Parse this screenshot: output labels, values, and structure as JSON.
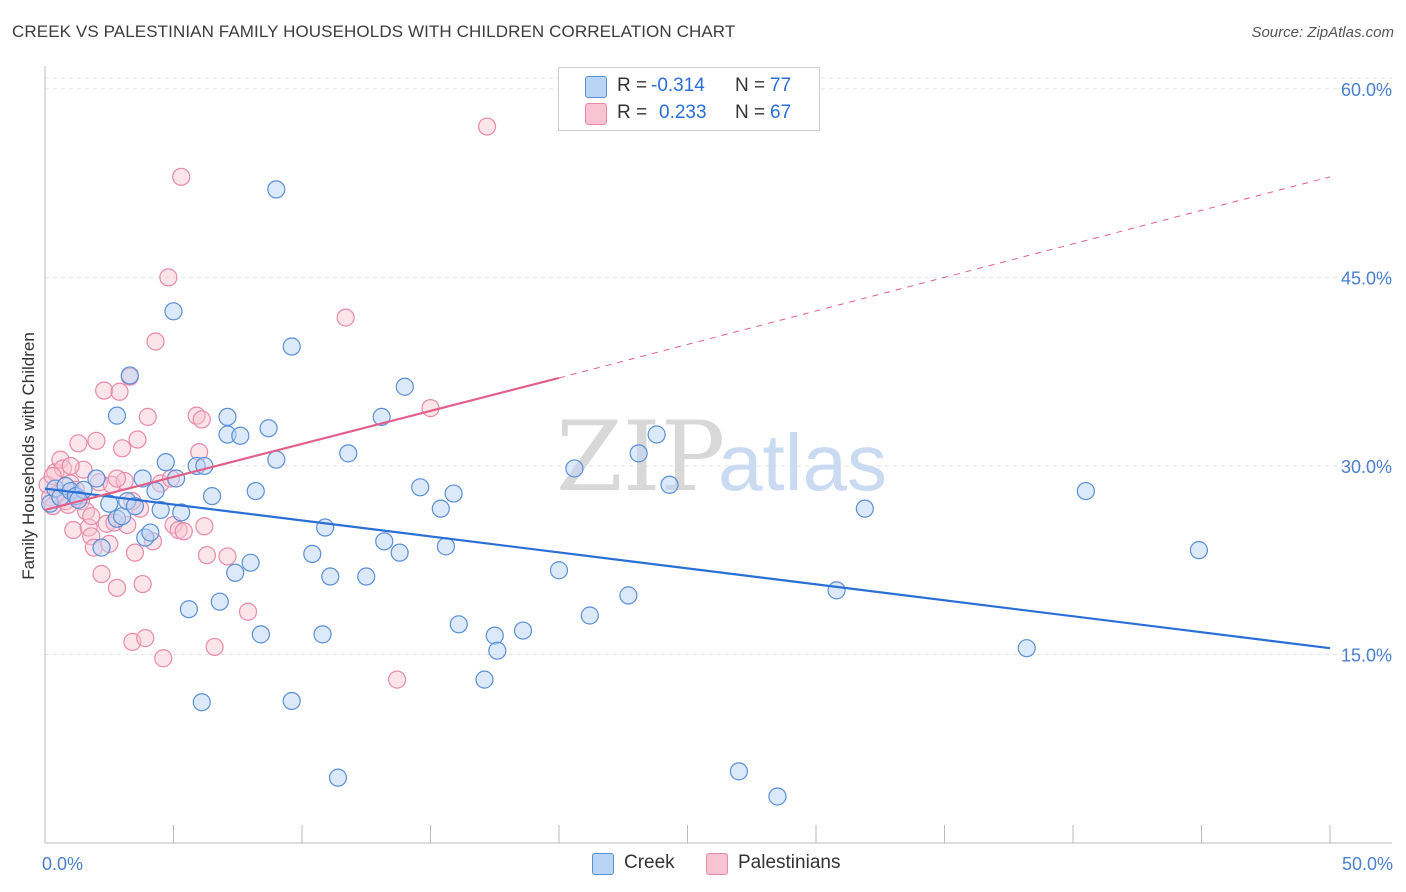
{
  "header": {
    "title": "CREEK VS PALESTINIAN FAMILY HOUSEHOLDS WITH CHILDREN CORRELATION CHART",
    "source": "Source: ZipAtlas.com"
  },
  "legend": {
    "rows": [
      {
        "r_label": "R =",
        "r_value": "-0.314",
        "n_label": "N =",
        "n_value": "77"
      },
      {
        "r_label": "R =",
        "r_value": "0.233",
        "n_label": "N =",
        "n_value": "67"
      }
    ]
  },
  "bottom_legend": {
    "creek": "Creek",
    "palestinians": "Palestinians"
  },
  "colors": {
    "creek_fill": "#b9d3f5",
    "creek_stroke": "#5b8fd6",
    "creek_line": "#2a6fd6",
    "pal_fill": "#f8c3d3",
    "pal_stroke": "#e88aa8",
    "pal_line": "#e0608a",
    "axis_tick": "#4a7fcf",
    "grid": "#e2e2e2"
  },
  "chart_data": {
    "type": "scatter",
    "title": "CREEK VS PALESTINIAN FAMILY HOUSEHOLDS WITH CHILDREN CORRELATION CHART",
    "xlabel": "",
    "ylabel": "Family Households with Children",
    "xlim": [
      0,
      50
    ],
    "ylim": [
      0,
      61.5
    ],
    "x_tick_labels": [
      "0.0%",
      "50.0%"
    ],
    "y_ticks": [
      15,
      30,
      45,
      60
    ],
    "y_tick_labels": [
      "15.0%",
      "30.0%",
      "45.0%",
      "60.0%"
    ],
    "grid": true,
    "legend_position": "top-center",
    "watermark": "ZIPatlas",
    "series": [
      {
        "name": "Creek",
        "r": -0.314,
        "n": 77,
        "trend": {
          "x": [
            0,
            50
          ],
          "y": [
            28.2,
            15.5
          ],
          "style": "solid"
        },
        "points": [
          [
            0.2,
            27.0
          ],
          [
            0.4,
            28.2
          ],
          [
            0.6,
            27.5
          ],
          [
            0.8,
            28.4
          ],
          [
            1.0,
            28.0
          ],
          [
            1.2,
            27.6
          ],
          [
            1.5,
            28.1
          ],
          [
            1.3,
            27.3
          ],
          [
            2.0,
            29.0
          ],
          [
            2.2,
            23.5
          ],
          [
            2.5,
            27.0
          ],
          [
            2.8,
            25.8
          ],
          [
            3.0,
            26.0
          ],
          [
            2.8,
            34.0
          ],
          [
            3.2,
            27.2
          ],
          [
            3.3,
            37.2
          ],
          [
            3.5,
            26.8
          ],
          [
            3.8,
            29.0
          ],
          [
            3.9,
            24.3
          ],
          [
            4.1,
            24.7
          ],
          [
            4.3,
            28.0
          ],
          [
            4.5,
            26.5
          ],
          [
            4.7,
            30.3
          ],
          [
            5.1,
            29.0
          ],
          [
            5.0,
            42.3
          ],
          [
            5.3,
            26.3
          ],
          [
            5.6,
            18.6
          ],
          [
            6.1,
            11.2
          ],
          [
            5.9,
            30.0
          ],
          [
            6.2,
            30.0
          ],
          [
            6.5,
            27.6
          ],
          [
            6.8,
            19.2
          ],
          [
            7.1,
            32.5
          ],
          [
            7.1,
            33.9
          ],
          [
            7.4,
            21.5
          ],
          [
            7.6,
            32.4
          ],
          [
            8.0,
            22.3
          ],
          [
            8.2,
            28.0
          ],
          [
            8.4,
            16.6
          ],
          [
            8.7,
            33.0
          ],
          [
            9.0,
            30.5
          ],
          [
            9.0,
            52.0
          ],
          [
            9.6,
            39.5
          ],
          [
            9.6,
            11.3
          ],
          [
            10.4,
            23.0
          ],
          [
            10.8,
            16.6
          ],
          [
            10.9,
            25.1
          ],
          [
            11.1,
            21.2
          ],
          [
            11.4,
            5.2
          ],
          [
            11.8,
            31.0
          ],
          [
            12.5,
            21.2
          ],
          [
            13.1,
            33.9
          ],
          [
            13.2,
            24.0
          ],
          [
            13.8,
            23.1
          ],
          [
            14.0,
            36.3
          ],
          [
            14.6,
            28.3
          ],
          [
            15.4,
            26.6
          ],
          [
            15.6,
            23.6
          ],
          [
            15.9,
            27.8
          ],
          [
            16.1,
            17.4
          ],
          [
            17.1,
            13.0
          ],
          [
            17.5,
            16.5
          ],
          [
            17.6,
            15.3
          ],
          [
            18.6,
            16.9
          ],
          [
            20.0,
            21.7
          ],
          [
            20.6,
            29.8
          ],
          [
            21.2,
            18.1
          ],
          [
            22.7,
            19.7
          ],
          [
            23.1,
            31.0
          ],
          [
            23.8,
            32.5
          ],
          [
            24.3,
            28.5
          ],
          [
            27.0,
            5.7
          ],
          [
            28.5,
            3.7
          ],
          [
            30.8,
            20.1
          ],
          [
            31.9,
            26.6
          ],
          [
            38.2,
            15.5
          ],
          [
            40.5,
            28.0
          ],
          [
            44.9,
            23.3
          ]
        ]
      },
      {
        "name": "Palestinians",
        "r": 0.233,
        "n": 67,
        "trend": {
          "x": [
            0,
            20
          ],
          "y": [
            26.5,
            37.0
          ],
          "style": "solid",
          "dashed_to": {
            "x": 50,
            "y": 53.0
          }
        },
        "points": [
          [
            0.1,
            28.5
          ],
          [
            0.2,
            27.5
          ],
          [
            0.3,
            26.8
          ],
          [
            0.4,
            29.5
          ],
          [
            0.5,
            27.8
          ],
          [
            0.6,
            30.5
          ],
          [
            0.7,
            29.8
          ],
          [
            0.8,
            27.2
          ],
          [
            0.9,
            26.9
          ],
          [
            1.0,
            28.6
          ],
          [
            1.1,
            24.9
          ],
          [
            1.2,
            28.1
          ],
          [
            1.3,
            31.8
          ],
          [
            1.4,
            27.2
          ],
          [
            1.5,
            29.7
          ],
          [
            1.6,
            26.4
          ],
          [
            1.7,
            25.1
          ],
          [
            1.8,
            24.4
          ],
          [
            1.9,
            23.5
          ],
          [
            2.0,
            32.0
          ],
          [
            2.1,
            28.7
          ],
          [
            2.2,
            21.4
          ],
          [
            2.3,
            36.0
          ],
          [
            2.4,
            25.4
          ],
          [
            2.5,
            23.8
          ],
          [
            2.6,
            28.5
          ],
          [
            2.7,
            25.5
          ],
          [
            2.8,
            20.3
          ],
          [
            2.9,
            35.9
          ],
          [
            3.0,
            31.4
          ],
          [
            3.1,
            28.8
          ],
          [
            3.2,
            25.3
          ],
          [
            3.3,
            37.1
          ],
          [
            3.4,
            16.0
          ],
          [
            3.5,
            23.1
          ],
          [
            3.6,
            32.1
          ],
          [
            3.7,
            26.6
          ],
          [
            3.8,
            20.6
          ],
          [
            3.9,
            16.3
          ],
          [
            4.0,
            33.9
          ],
          [
            4.3,
            39.9
          ],
          [
            4.5,
            28.6
          ],
          [
            4.6,
            14.7
          ],
          [
            4.8,
            45.0
          ],
          [
            4.9,
            29.0
          ],
          [
            5.0,
            25.3
          ],
          [
            5.2,
            24.9
          ],
          [
            5.3,
            53.0
          ],
          [
            5.4,
            24.8
          ],
          [
            5.9,
            34.0
          ],
          [
            6.0,
            31.1
          ],
          [
            6.1,
            33.7
          ],
          [
            6.2,
            25.2
          ],
          [
            6.3,
            22.9
          ],
          [
            6.6,
            15.6
          ],
          [
            7.1,
            22.8
          ],
          [
            7.9,
            18.4
          ],
          [
            11.7,
            41.8
          ],
          [
            13.7,
            13.0
          ],
          [
            15.0,
            34.6
          ],
          [
            17.2,
            57.0
          ],
          [
            0.3,
            29.2
          ],
          [
            1.0,
            30.0
          ],
          [
            1.8,
            26.0
          ],
          [
            2.8,
            29.0
          ],
          [
            3.4,
            27.2
          ],
          [
            4.2,
            24.0
          ]
        ]
      }
    ]
  }
}
